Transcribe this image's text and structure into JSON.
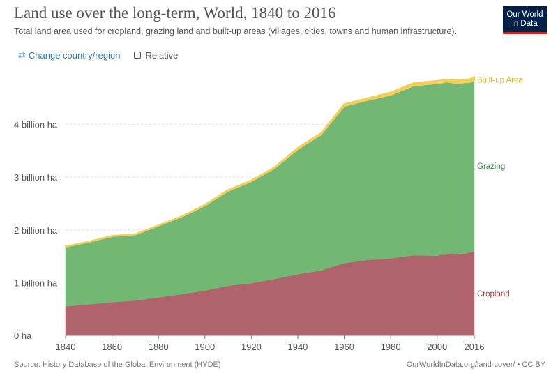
{
  "header": {
    "title": "Land use over the long-term, World, 1840 to 2016",
    "subtitle": "Total land area used for cropland, grazing land and built-up areas (villages, cities, towns and human infrastructure).",
    "logo_line1": "Our World",
    "logo_line2": "in Data"
  },
  "controls": {
    "change_label": "Change country/region",
    "change_icon": "swap-arrows-icon",
    "relative_label": "Relative",
    "relative_checked": false
  },
  "footer": {
    "source": "Source: History Database of the Global Environment (HYDE)",
    "url": "OurWorldInData.org/land-cover/ • CC BY"
  },
  "colors": {
    "cropland": "#b0636c",
    "grazing": "#72b874",
    "builtup": "#f2cf5b",
    "cropland_text": "#b5383e",
    "grazing_text": "#3c8a45",
    "builtup_text": "#e0b224"
  },
  "chart_data": {
    "type": "area",
    "stacked": true,
    "x": [
      1840,
      1850,
      1860,
      1870,
      1880,
      1890,
      1900,
      1910,
      1920,
      1930,
      1940,
      1950,
      1960,
      1970,
      1980,
      1990,
      2000,
      2002,
      2004,
      2006,
      2008,
      2010,
      2012,
      2014,
      2016
    ],
    "series": [
      {
        "name": "Cropland",
        "values": [
          0.55,
          0.59,
          0.63,
          0.66,
          0.72,
          0.78,
          0.85,
          0.94,
          0.99,
          1.07,
          1.16,
          1.23,
          1.37,
          1.43,
          1.46,
          1.52,
          1.51,
          1.53,
          1.53,
          1.55,
          1.54,
          1.55,
          1.55,
          1.57,
          1.59
        ]
      },
      {
        "name": "Grazing",
        "values": [
          1.13,
          1.18,
          1.25,
          1.25,
          1.36,
          1.47,
          1.61,
          1.8,
          1.93,
          2.1,
          2.37,
          2.58,
          2.98,
          3.03,
          3.1,
          3.22,
          3.27,
          3.26,
          3.28,
          3.25,
          3.24,
          3.23,
          3.25,
          3.23,
          3.25
        ]
      },
      {
        "name": "Built-up Area",
        "values": [
          0.01,
          0.01,
          0.01,
          0.01,
          0.01,
          0.01,
          0.02,
          0.02,
          0.02,
          0.02,
          0.03,
          0.03,
          0.04,
          0.04,
          0.05,
          0.05,
          0.05,
          0.05,
          0.05,
          0.05,
          0.06,
          0.06,
          0.06,
          0.06,
          0.06
        ]
      }
    ],
    "xlim": [
      1840,
      2016
    ],
    "ylim": [
      0,
      4.8
    ],
    "x_ticks": [
      1840,
      1860,
      1880,
      1900,
      1920,
      1940,
      1960,
      1980,
      2000,
      2016
    ],
    "y_ticks": [
      {
        "value": 0,
        "label": "0 ha"
      },
      {
        "value": 1,
        "label": "1 billion ha"
      },
      {
        "value": 2,
        "label": "2 billion ha"
      },
      {
        "value": 3,
        "label": "3 billion ha"
      },
      {
        "value": 4,
        "label": "4 billion ha"
      }
    ],
    "grid": true,
    "legend": "right-inline"
  }
}
